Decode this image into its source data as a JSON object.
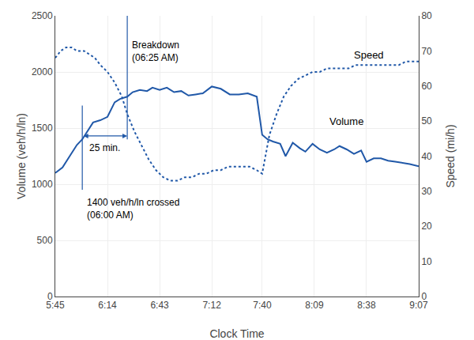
{
  "chart_data": {
    "type": "line",
    "xlabel": "Clock Time",
    "ylabel": "Volume (veh/h/ln)",
    "y2label": "Speed (mi/h)",
    "xlim": [
      0,
      202
    ],
    "xticks": [
      {
        "value": 0,
        "label": "5:45"
      },
      {
        "value": 29,
        "label": "6:14"
      },
      {
        "value": 58,
        "label": "6:43"
      },
      {
        "value": 87,
        "label": "7:12"
      },
      {
        "value": 115,
        "label": "7:40"
      },
      {
        "value": 144,
        "label": "8:09"
      },
      {
        "value": 173,
        "label": "8:38"
      },
      {
        "value": 202,
        "label": "9:07"
      }
    ],
    "ylim": [
      0,
      2500
    ],
    "yticks": [
      0,
      500,
      1000,
      1500,
      2000,
      2500
    ],
    "y2lim": [
      0,
      80
    ],
    "y2ticks": [
      0,
      10,
      20,
      30,
      40,
      50,
      60,
      70,
      80
    ],
    "grid": true,
    "series": [
      {
        "name": "Volume",
        "color": "#2058A8",
        "line_style": "solid",
        "x": [
          0,
          4,
          8,
          12,
          15,
          18,
          21,
          25,
          29,
          33,
          36,
          40,
          43,
          47,
          51,
          54,
          58,
          62,
          66,
          70,
          74,
          78,
          82,
          87,
          92,
          97,
          102,
          107,
          112,
          115,
          118,
          121,
          125,
          128,
          132,
          136,
          139,
          143,
          147,
          151,
          155,
          158,
          162,
          166,
          170,
          173,
          177,
          181,
          185,
          189,
          193,
          197,
          202
        ],
        "values": [
          1100,
          1150,
          1250,
          1350,
          1400,
          1480,
          1550,
          1570,
          1600,
          1730,
          1760,
          1780,
          1820,
          1840,
          1830,
          1860,
          1840,
          1860,
          1820,
          1830,
          1790,
          1800,
          1810,
          1870,
          1850,
          1800,
          1800,
          1810,
          1780,
          1440,
          1400,
          1380,
          1360,
          1250,
          1370,
          1320,
          1290,
          1360,
          1310,
          1280,
          1310,
          1340,
          1310,
          1270,
          1300,
          1200,
          1230,
          1230,
          1210,
          1200,
          1190,
          1180,
          1160
        ]
      },
      {
        "name": "Speed",
        "color": "#2058A8",
        "line_style": "dotted",
        "axis": "y2",
        "x": [
          0,
          3,
          6,
          9,
          12,
          16,
          19,
          22,
          25,
          29,
          33,
          37,
          40,
          44,
          48,
          52,
          56,
          60,
          64,
          68,
          72,
          76,
          80,
          84,
          88,
          92,
          96,
          100,
          104,
          108,
          112,
          115,
          119,
          123,
          127,
          131,
          135,
          139,
          143,
          147,
          151,
          155,
          159,
          163,
          167,
          171,
          175,
          179,
          183,
          187,
          191,
          195,
          199,
          202
        ],
        "values": [
          68,
          70,
          71,
          71,
          70,
          70,
          69,
          68,
          66,
          64,
          61,
          57,
          52,
          47,
          43,
          39,
          36,
          34,
          33,
          33,
          34,
          34,
          35,
          35,
          36,
          36,
          37,
          37,
          37,
          37,
          36,
          35,
          46,
          52,
          57,
          60,
          62,
          63,
          64,
          64,
          65,
          65,
          65,
          65,
          66,
          66,
          66,
          66,
          66,
          66,
          66,
          67,
          67,
          67
        ]
      }
    ],
    "annotations": [
      {
        "text": "1400 veh/h/ln crossed\n(06:00 AM)",
        "x": 15
      },
      {
        "text": "Breakdown\n(06:25 AM)",
        "x": 40
      },
      {
        "text": "25 min.",
        "x": [
          15,
          40
        ],
        "y": 1430
      }
    ]
  }
}
